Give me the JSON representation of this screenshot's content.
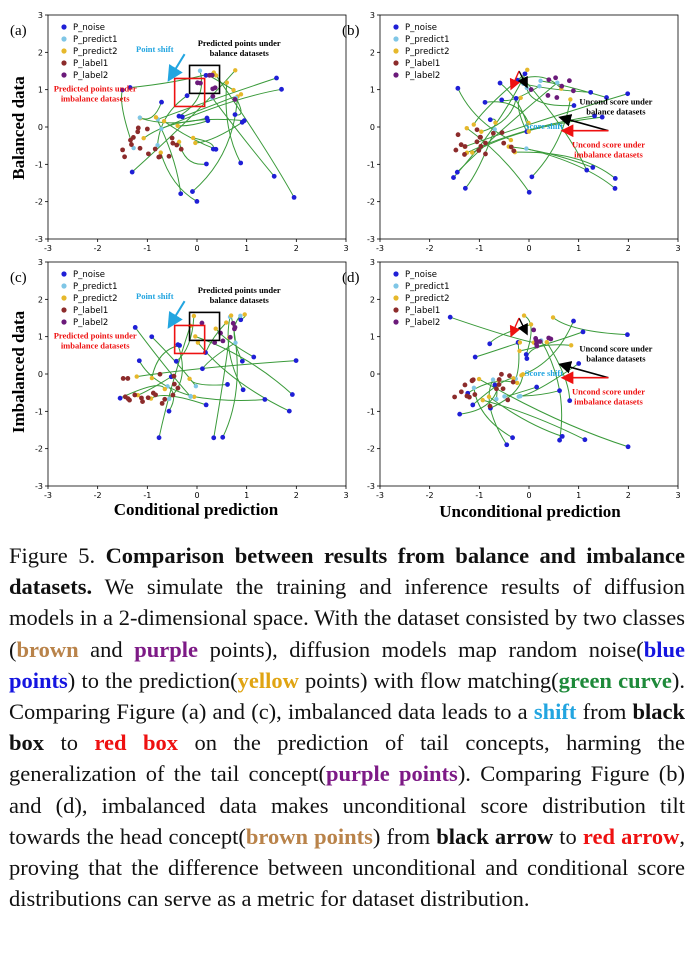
{
  "figure": {
    "panels": [
      {
        "letter": "(a)",
        "box_label": "Predicted points under balance datasets",
        "shift_label": "Point shift",
        "red_label": "Predicted points under imbalance datasets"
      },
      {
        "letter": "(b)",
        "box_label": "Uncond score under balance datasets",
        "shift_label": "Score shift",
        "red_label": "Uncond score under imbalance datasets"
      },
      {
        "letter": "(c)",
        "box_label": "Predicted points under balance datasets",
        "shift_label": "Point shift",
        "red_label": "Predicted points under imbalance datasets"
      },
      {
        "letter": "(d)",
        "box_label": "Uncond score under balance datasets",
        "shift_label": "Score shift",
        "red_label": "Uncond score under imbalance datasets"
      }
    ],
    "row_labels": [
      "Balanced data",
      "Imbalanced data"
    ],
    "col_labels": [
      "Conditional prediction",
      "Unconditional prediction"
    ],
    "legend": [
      {
        "label": "P_noise",
        "color": "#1f1fd6"
      },
      {
        "label": "P_predict1",
        "color": "#7fc6e6"
      },
      {
        "label": "P_predict2",
        "color": "#e6b82b"
      },
      {
        "label": "P_label1",
        "color": "#8c2b2b"
      },
      {
        "label": "P_label2",
        "color": "#6b1a7a"
      }
    ],
    "colors": {
      "curve": "#3a9a3a",
      "black_box": "#000000",
      "red_box": "#ee1111",
      "shift_arrow": "#22a5e0"
    }
  },
  "chart_data": [
    {
      "type": "scatter",
      "panel": "(a)",
      "xlim": [
        -3,
        3
      ],
      "ylim": [
        -3,
        3
      ],
      "xticks": [
        "-3",
        "-2",
        "-1",
        "0",
        "1",
        "2",
        "3"
      ],
      "yticks": [
        "-3",
        "-2",
        "-1",
        "0",
        "1",
        "2",
        "3"
      ],
      "ylabel": "Balanced data",
      "xlabel": ""
    },
    {
      "type": "scatter",
      "panel": "(b)",
      "xlim": [
        -3,
        3
      ],
      "ylim": [
        -3,
        3
      ],
      "xticks": [
        "-3",
        "-2",
        "-1",
        "0",
        "1",
        "2",
        "3"
      ],
      "yticks": [
        "-3",
        "-2",
        "-1",
        "0",
        "1",
        "2",
        "3"
      ],
      "ylabel": "",
      "xlabel": ""
    },
    {
      "type": "scatter",
      "panel": "(c)",
      "xlim": [
        -3,
        3
      ],
      "ylim": [
        -3,
        3
      ],
      "xticks": [
        "-3",
        "-2",
        "-1",
        "0",
        "1",
        "2",
        "3"
      ],
      "yticks": [
        "-3",
        "-2",
        "-1",
        "0",
        "1",
        "2",
        "3"
      ],
      "ylabel": "Imbalanced data",
      "xlabel": "Conditional prediction"
    },
    {
      "type": "scatter",
      "panel": "(d)",
      "xlim": [
        -3,
        3
      ],
      "ylim": [
        -3,
        3
      ],
      "xticks": [
        "-3",
        "-2",
        "-1",
        "0",
        "1",
        "2",
        "3"
      ],
      "yticks": [
        "-3",
        "-2",
        "-1",
        "0",
        "1",
        "2",
        "3"
      ],
      "ylabel": "",
      "xlabel": "Unconditional prediction"
    }
  ],
  "caption": {
    "prefix": "Figure 5.",
    "title": "Comparison between results from balance and imbalance datasets.",
    "s1": "We simulate the training and inference results of diffusion models in a 2-dimensional space. With the dataset consisted by two classes (",
    "brown": "brown",
    "and": "and",
    "purple": "purple",
    "s2": "points), diffusion models map random noise(",
    "blue_points": "blue points",
    "s3": ") to the prediction(",
    "yellow": "yellow",
    "s4": "points) with flow matching(",
    "green_curve": "green curve",
    "s5": "). Comparing Figure (a) and (c), imbalanced data leads to a",
    "shift": "shift",
    "from": "from",
    "black_box": "black box",
    "to": "to",
    "red_box": "red box",
    "s6": "on the prediction of tail concepts, harming the generalization of the tail concept(",
    "purple_points": "purple points",
    "s7": "). Comparing Figure (b) and (d), imbalanced data makes unconditional score distribution tilt towards the head concept(",
    "brown_points": "brown points",
    "s8": ") from",
    "black_arrow": "black arrow",
    "red_arrow": "red arrow",
    "s9": ", proving that the difference between unconditional and conditional score distributions can serve as a metric for dataset distribution."
  }
}
